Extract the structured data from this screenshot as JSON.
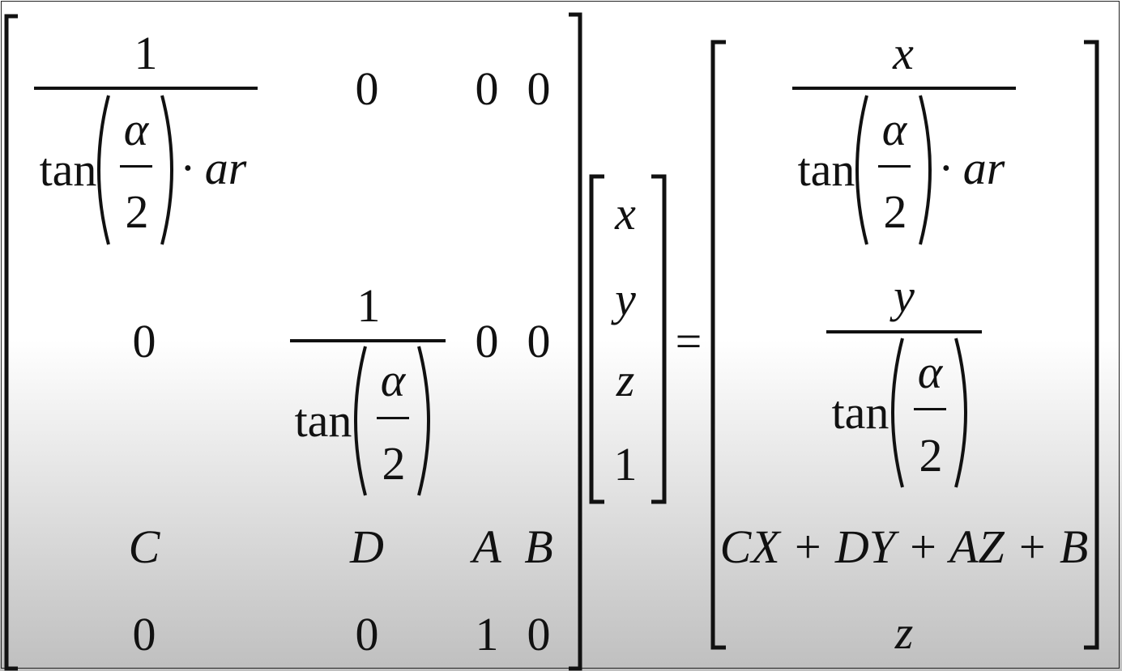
{
  "equation": {
    "matrix": {
      "r1": {
        "c1": {
          "num": "1",
          "tan": "tan",
          "alpha": "α",
          "two": "2",
          "dot_ar": "· ar"
        },
        "c2": "0",
        "c3": "0",
        "c4": "0"
      },
      "r2": {
        "c1": "0",
        "c2": {
          "num": "1",
          "tan": "tan",
          "alpha": "α",
          "two": "2"
        },
        "c3": "0",
        "c4": "0"
      },
      "r3": {
        "c1": "C",
        "c2": "D",
        "c3": "A",
        "c4": "B"
      },
      "r4": {
        "c1": "0",
        "c2": "0",
        "c3": "1",
        "c4": "0"
      }
    },
    "vector": [
      "x",
      "y",
      "z",
      "1"
    ],
    "equals": "=",
    "result": {
      "r1": {
        "num": "x",
        "tan": "tan",
        "alpha": "α",
        "two": "2",
        "dot_ar": "· ar"
      },
      "r2": {
        "num": "y",
        "tan": "tan",
        "alpha": "α",
        "two": "2"
      },
      "r3": "CX + DY + AZ + B",
      "r4": "z"
    }
  }
}
